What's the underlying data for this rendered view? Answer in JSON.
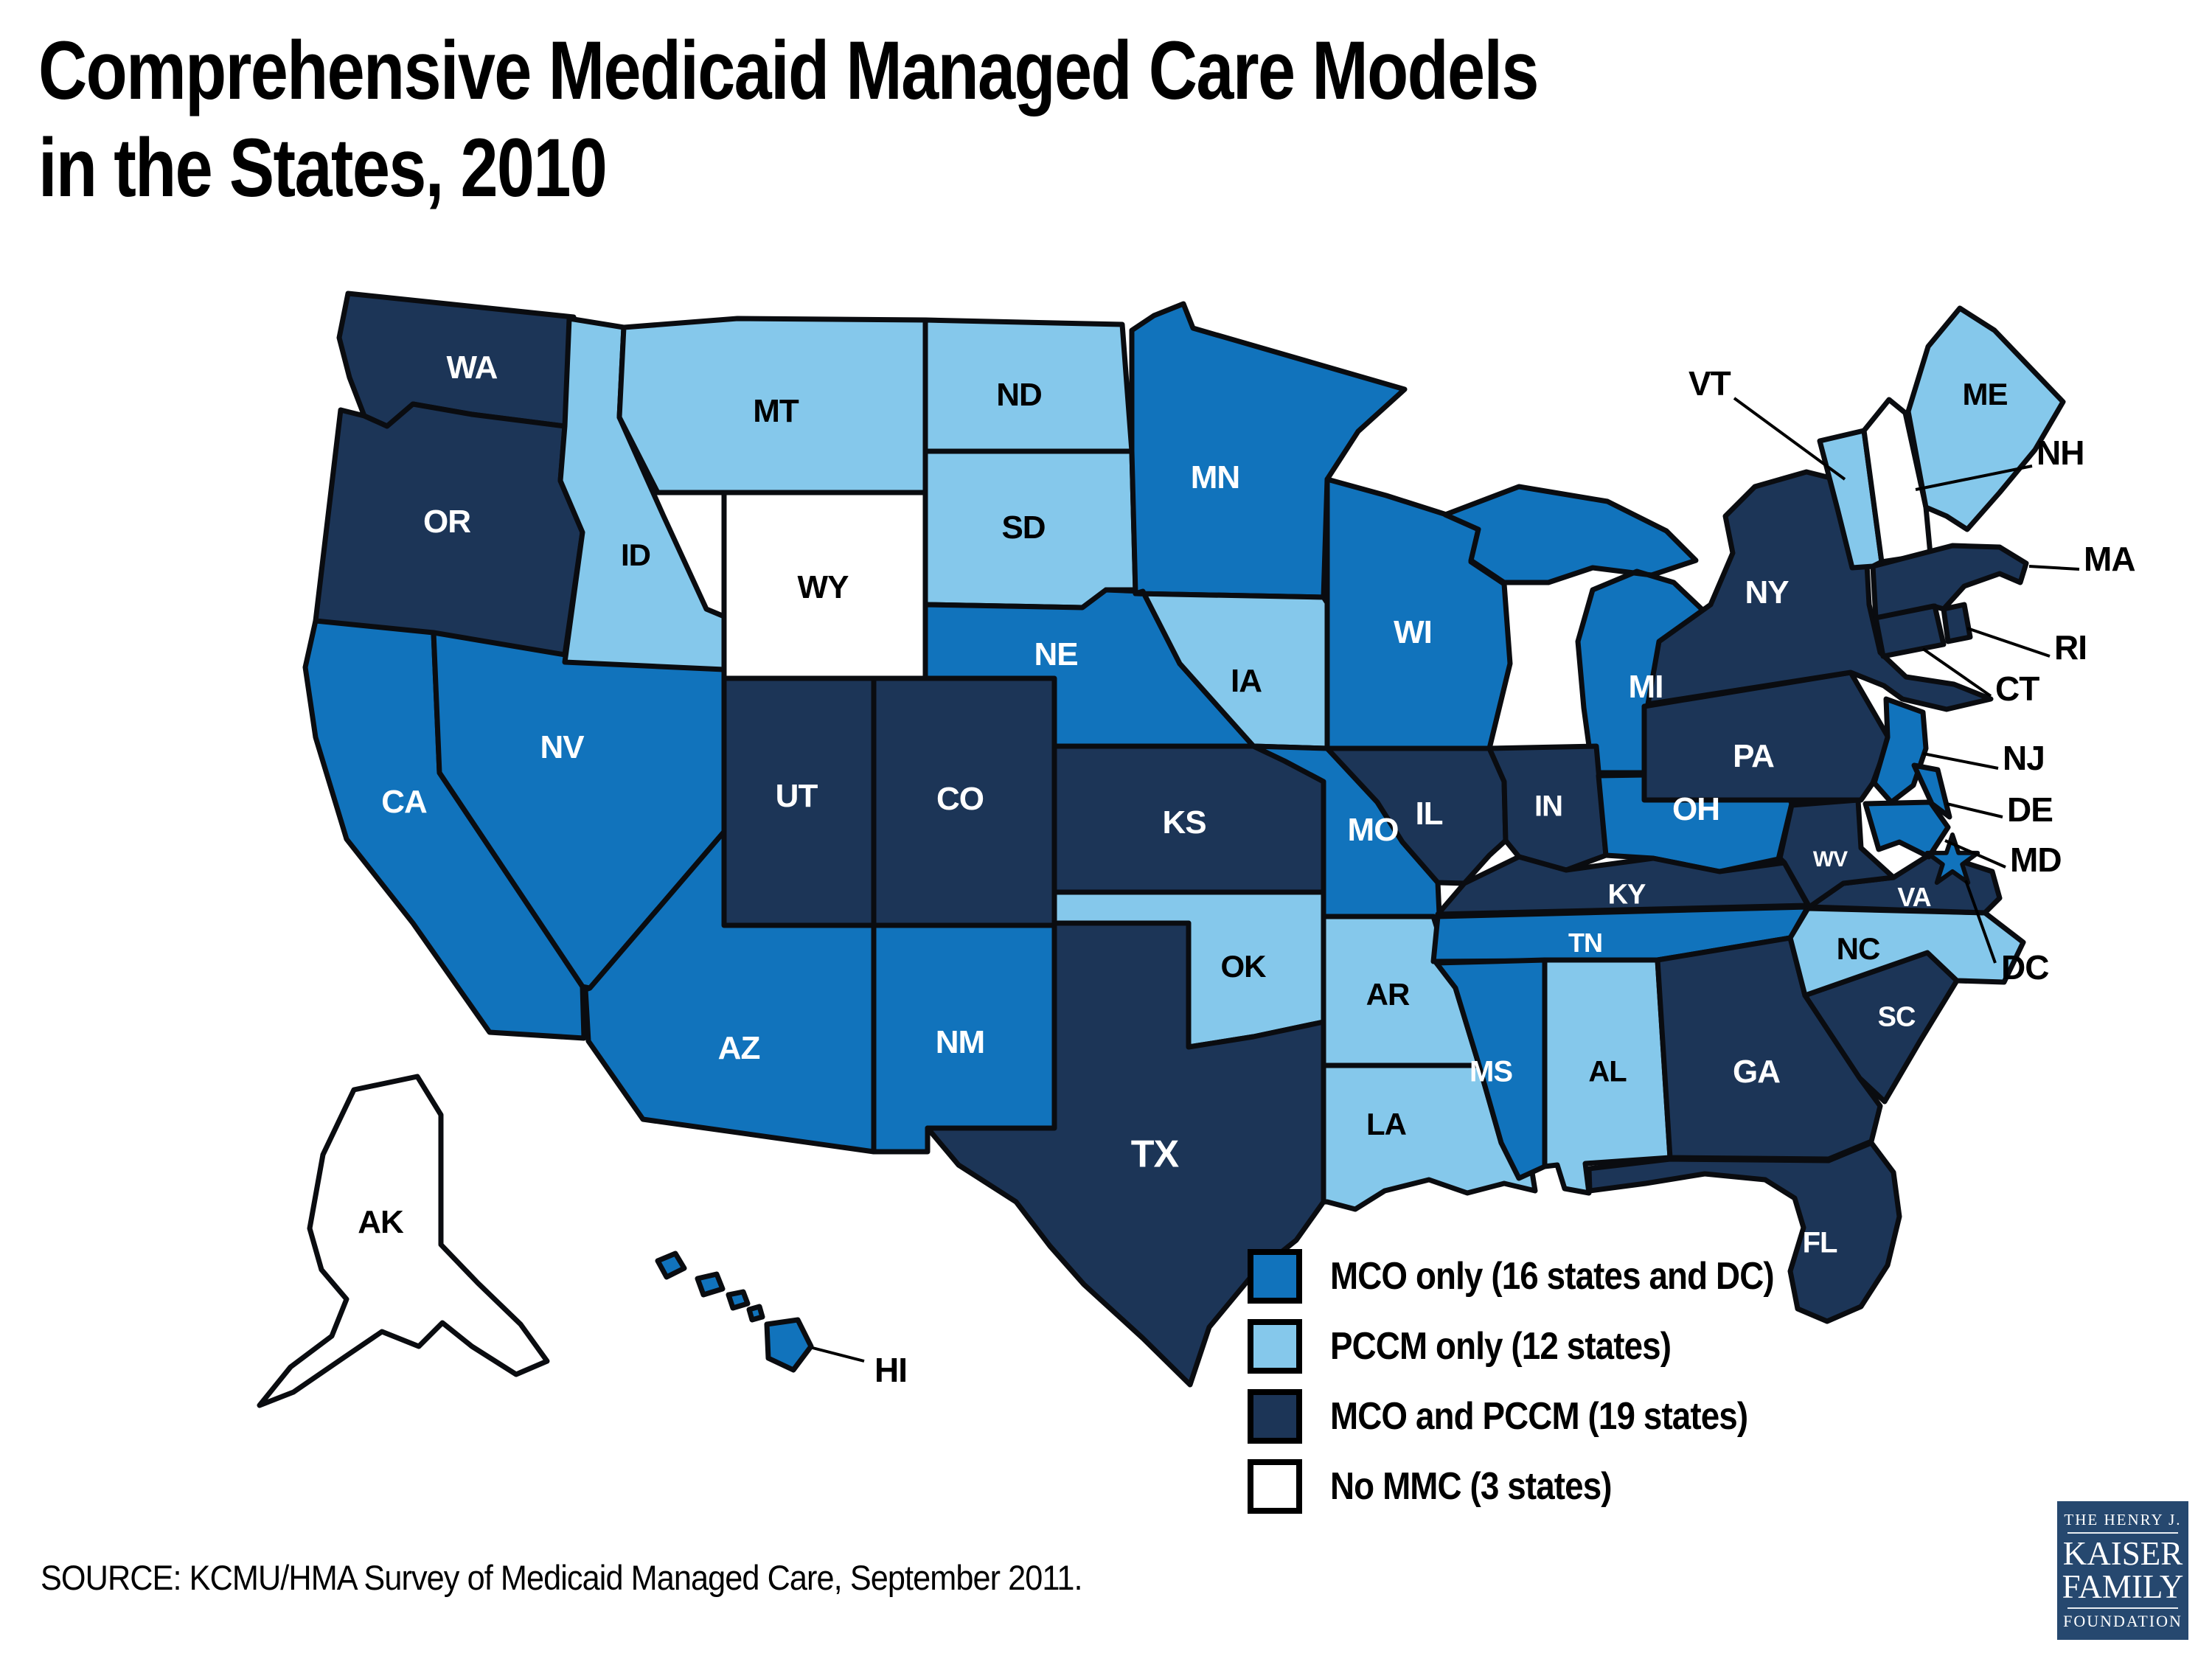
{
  "title": {
    "line1": "Comprehensive Medicaid Managed Care Models",
    "line2": "in the States, 2010"
  },
  "legend": {
    "items": [
      {
        "key": "mco_only",
        "label": "MCO only (16 states and DC)"
      },
      {
        "key": "pccm_only",
        "label": "PCCM only (12 states)"
      },
      {
        "key": "mco_and_pccm",
        "label": "MCO and PCCM (19 states)"
      },
      {
        "key": "no_mmc",
        "label": "No MMC (3 states)"
      }
    ]
  },
  "colors": {
    "mco_only": "#1173BC",
    "pccm_only": "#85C8EB",
    "mco_and_pccm": "#1C3557",
    "no_mmc": "#FFFFFF",
    "border": "#0A0C10",
    "label_light": "#FFFFFF",
    "label_dark": "#000000",
    "leader": "#000000",
    "logo_bg": "#26486F"
  },
  "source": "SOURCE:  KCMU/HMA Survey of Medicaid Managed Care, September 2011.",
  "logo": {
    "line1": "THE HENRY J.",
    "line2": "KAISER",
    "line3": "FAMILY",
    "line4": "FOUNDATION"
  },
  "map": {
    "states": [
      {
        "abbr": "WA",
        "category": "mco_and_pccm"
      },
      {
        "abbr": "OR",
        "category": "mco_and_pccm"
      },
      {
        "abbr": "CA",
        "category": "mco_only"
      },
      {
        "abbr": "NV",
        "category": "mco_only"
      },
      {
        "abbr": "ID",
        "category": "pccm_only"
      },
      {
        "abbr": "MT",
        "category": "pccm_only"
      },
      {
        "abbr": "WY",
        "category": "no_mmc"
      },
      {
        "abbr": "UT",
        "category": "mco_and_pccm"
      },
      {
        "abbr": "CO",
        "category": "mco_and_pccm"
      },
      {
        "abbr": "AZ",
        "category": "mco_only"
      },
      {
        "abbr": "NM",
        "category": "mco_only"
      },
      {
        "abbr": "ND",
        "category": "pccm_only"
      },
      {
        "abbr": "SD",
        "category": "pccm_only"
      },
      {
        "abbr": "NE",
        "category": "mco_only"
      },
      {
        "abbr": "KS",
        "category": "mco_and_pccm"
      },
      {
        "abbr": "OK",
        "category": "pccm_only"
      },
      {
        "abbr": "TX",
        "category": "mco_and_pccm"
      },
      {
        "abbr": "MN",
        "category": "mco_only"
      },
      {
        "abbr": "IA",
        "category": "pccm_only"
      },
      {
        "abbr": "MO",
        "category": "mco_only"
      },
      {
        "abbr": "AR",
        "category": "pccm_only"
      },
      {
        "abbr": "LA",
        "category": "pccm_only"
      },
      {
        "abbr": "WI",
        "category": "mco_only"
      },
      {
        "abbr": "IL",
        "category": "mco_and_pccm"
      },
      {
        "abbr": "MI",
        "category": "mco_only"
      },
      {
        "abbr": "IN",
        "category": "mco_and_pccm"
      },
      {
        "abbr": "OH",
        "category": "mco_only"
      },
      {
        "abbr": "KY",
        "category": "mco_and_pccm"
      },
      {
        "abbr": "TN",
        "category": "mco_only"
      },
      {
        "abbr": "MS",
        "category": "mco_only"
      },
      {
        "abbr": "AL",
        "category": "pccm_only"
      },
      {
        "abbr": "GA",
        "category": "mco_and_pccm"
      },
      {
        "abbr": "FL",
        "category": "mco_and_pccm"
      },
      {
        "abbr": "SC",
        "category": "mco_and_pccm"
      },
      {
        "abbr": "NC",
        "category": "pccm_only"
      },
      {
        "abbr": "VA",
        "category": "mco_and_pccm"
      },
      {
        "abbr": "WV",
        "category": "mco_and_pccm"
      },
      {
        "abbr": "PA",
        "category": "mco_and_pccm"
      },
      {
        "abbr": "NY",
        "category": "mco_and_pccm"
      },
      {
        "abbr": "NJ",
        "category": "mco_only"
      },
      {
        "abbr": "DE",
        "category": "mco_only"
      },
      {
        "abbr": "MD",
        "category": "mco_only"
      },
      {
        "abbr": "VT",
        "category": "pccm_only"
      },
      {
        "abbr": "NH",
        "category": "no_mmc"
      },
      {
        "abbr": "ME",
        "category": "pccm_only"
      },
      {
        "abbr": "MA",
        "category": "mco_and_pccm"
      },
      {
        "abbr": "RI",
        "category": "mco_and_pccm"
      },
      {
        "abbr": "CT",
        "category": "mco_and_pccm"
      },
      {
        "abbr": "AK",
        "category": "no_mmc"
      },
      {
        "abbr": "HI",
        "category": "mco_only"
      },
      {
        "abbr": "DC",
        "category": "mco_only"
      }
    ]
  }
}
